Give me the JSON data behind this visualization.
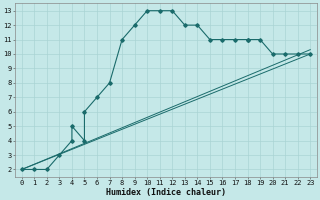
{
  "xlabel": "Humidex (Indice chaleur)",
  "bg_color": "#c5e8e8",
  "grid_color": "#aad4d4",
  "line_color": "#1a6b6b",
  "xlim": [
    -0.5,
    23.5
  ],
  "ylim": [
    1.5,
    13.5
  ],
  "xticks": [
    0,
    1,
    2,
    3,
    4,
    5,
    6,
    7,
    8,
    9,
    10,
    11,
    12,
    13,
    14,
    15,
    16,
    17,
    18,
    19,
    20,
    21,
    22,
    23
  ],
  "yticks": [
    2,
    3,
    4,
    5,
    6,
    7,
    8,
    9,
    10,
    11,
    12,
    13
  ],
  "curve1_x": [
    0,
    1,
    2,
    3,
    4,
    4,
    5,
    5,
    6,
    7,
    8,
    9,
    10,
    11,
    12,
    13,
    14,
    15,
    16,
    17,
    18,
    18,
    19,
    20,
    21,
    22,
    23
  ],
  "curve1_y": [
    2,
    2,
    2,
    3,
    4,
    5,
    4,
    6,
    7,
    8,
    11,
    12,
    13,
    13,
    13,
    12,
    12,
    11,
    11,
    11,
    11,
    11,
    11,
    10,
    10,
    10,
    10
  ],
  "curve2_x": [
    0,
    23
  ],
  "curve2_y": [
    2,
    10.3
  ],
  "curve3_x": [
    0,
    23
  ],
  "curve3_y": [
    2,
    10.0
  ],
  "tick_fontsize": 5.0,
  "xlabel_fontsize": 6.0
}
